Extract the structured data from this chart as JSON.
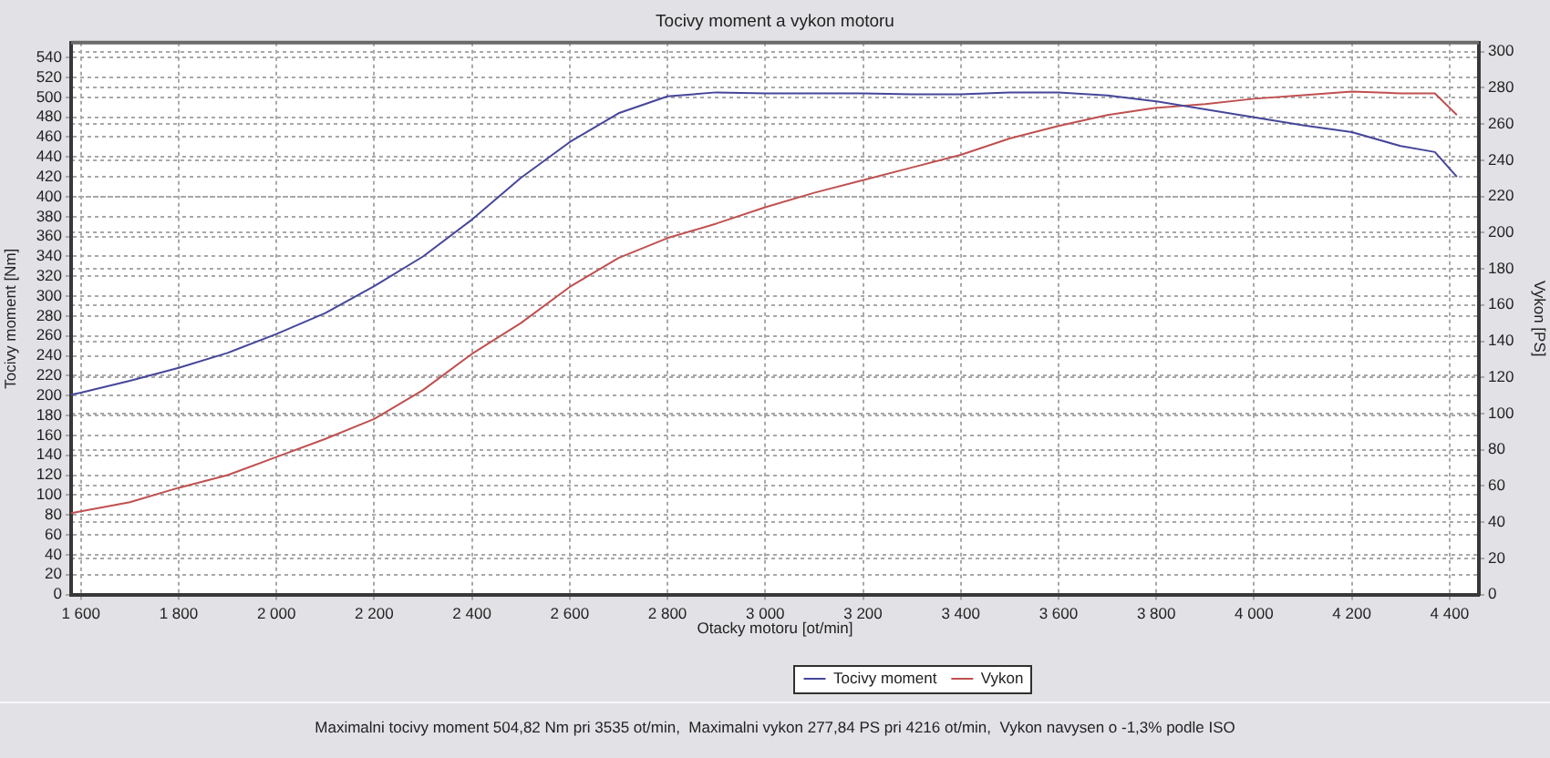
{
  "chart_data": {
    "type": "line",
    "title": "Tocivy moment a vykon motoru",
    "xlabel": "Otacky motoru [ot/min]",
    "ylabel": "Tocivy moment [Nm]",
    "y2label": "Vykon [PS]",
    "x": [
      1580,
      1600,
      1700,
      1800,
      1900,
      2000,
      2100,
      2200,
      2300,
      2400,
      2500,
      2600,
      2700,
      2800,
      2900,
      3000,
      3100,
      3200,
      3300,
      3400,
      3500,
      3600,
      3700,
      3800,
      3900,
      4000,
      4100,
      4200,
      4300,
      4370,
      4415
    ],
    "series": [
      {
        "name": "Tocivy moment",
        "color": "#46469a",
        "values": [
          201,
          203,
          215,
          228,
          243,
          262,
          283,
          310,
          340,
          377,
          419,
          455,
          484,
          501,
          505,
          504,
          504,
          504,
          503,
          503,
          505,
          505,
          502,
          496,
          488,
          480,
          472,
          465,
          451,
          445,
          420
        ]
      },
      {
        "name": "Vykon",
        "color": "#c05050",
        "axis": "y2",
        "values": [
          45,
          46,
          51,
          59,
          66,
          76,
          86,
          97,
          113,
          133,
          150,
          170,
          186,
          197,
          205,
          214,
          222,
          229,
          236,
          243,
          252,
          259,
          265,
          269,
          271,
          274,
          276,
          278,
          277,
          277,
          265
        ]
      }
    ],
    "xlim": [
      1580,
      4460
    ],
    "xticks": [
      {
        "value": 1600,
        "label": "1 600"
      },
      {
        "value": 1800,
        "label": "1 800"
      },
      {
        "value": 2000,
        "label": "2 000"
      },
      {
        "value": 2200,
        "label": "2 200"
      },
      {
        "value": 2400,
        "label": "2 400"
      },
      {
        "value": 2600,
        "label": "2 600"
      },
      {
        "value": 2800,
        "label": "2 800"
      },
      {
        "value": 3000,
        "label": "3 000"
      },
      {
        "value": 3200,
        "label": "3 200"
      },
      {
        "value": 3400,
        "label": "3 400"
      },
      {
        "value": 3600,
        "label": "3 600"
      },
      {
        "value": 3800,
        "label": "3 800"
      },
      {
        "value": 4000,
        "label": "4 000"
      },
      {
        "value": 4200,
        "label": "4 200"
      },
      {
        "value": 4400,
        "label": "4 400"
      }
    ],
    "ylim": [
      0,
      555
    ],
    "yticks": [
      0,
      20,
      40,
      60,
      80,
      100,
      120,
      140,
      160,
      180,
      200,
      220,
      240,
      260,
      280,
      300,
      320,
      340,
      360,
      380,
      400,
      420,
      440,
      460,
      480,
      500,
      520,
      540
    ],
    "y2lim": [
      0,
      305
    ],
    "y2ticks": [
      0,
      20,
      40,
      60,
      80,
      100,
      120,
      140,
      160,
      180,
      200,
      220,
      240,
      260,
      280,
      300
    ],
    "grid": true,
    "legend": "bottom",
    "marker": "none",
    "line_style": "solid",
    "annotations": [
      "Maximalni tocivy moment 504,82 Nm pri 3535 ot/min,  Maximalni vykon 277,84 PS pri 4216 ot/min,  Vykon navysen o -1,3% podle ISO"
    ]
  }
}
